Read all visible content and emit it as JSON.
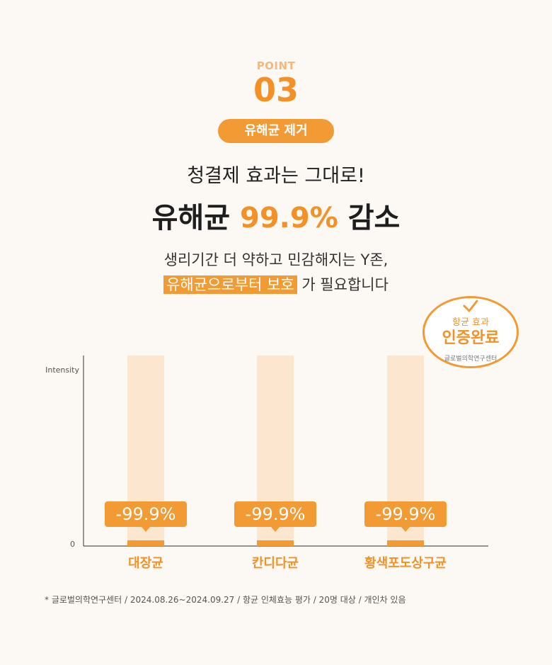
{
  "header": {
    "point_label": "POINT",
    "point_number": "03",
    "tag": "유해균 제거",
    "subtitle": "청결제 효과는 그대로!",
    "headline_pre": "유해균 ",
    "headline_accent": "99.9%",
    "headline_post": " 감소",
    "desc_line1": "생리기간 더 약하고 민감해지는 Y존,",
    "desc_line2_highlight": "유해균으로부터 보호",
    "desc_line2_rest": " 가 필요합니다"
  },
  "badge": {
    "line1": "항균 효과",
    "line2": "인증완료",
    "line3": "글로벌의학연구센터",
    "icon": "check-icon"
  },
  "chart_data": {
    "type": "bar",
    "ylabel": "Intensity",
    "y_ticks": [
      "0"
    ],
    "categories": [
      "대장균",
      "칸디다균",
      "황색포도상구균"
    ],
    "reduction_labels": [
      "-99.9%",
      "-99.9%",
      "-99.9%"
    ],
    "baseline_values": [
      100,
      100,
      100
    ],
    "after_values": [
      0.1,
      0.1,
      0.1
    ],
    "ylim": [
      0,
      100
    ],
    "colors": {
      "baseline": "#fde6cf",
      "after": "#f29a33",
      "label_bg": "#f29a33",
      "category_text": "#f39127"
    }
  },
  "footnote": "* 글로벌의학연구센터 / 2024.08.26~2024.09.27 / 항균 인체효능 평가 / 20명 대상 / 개인차 있음"
}
